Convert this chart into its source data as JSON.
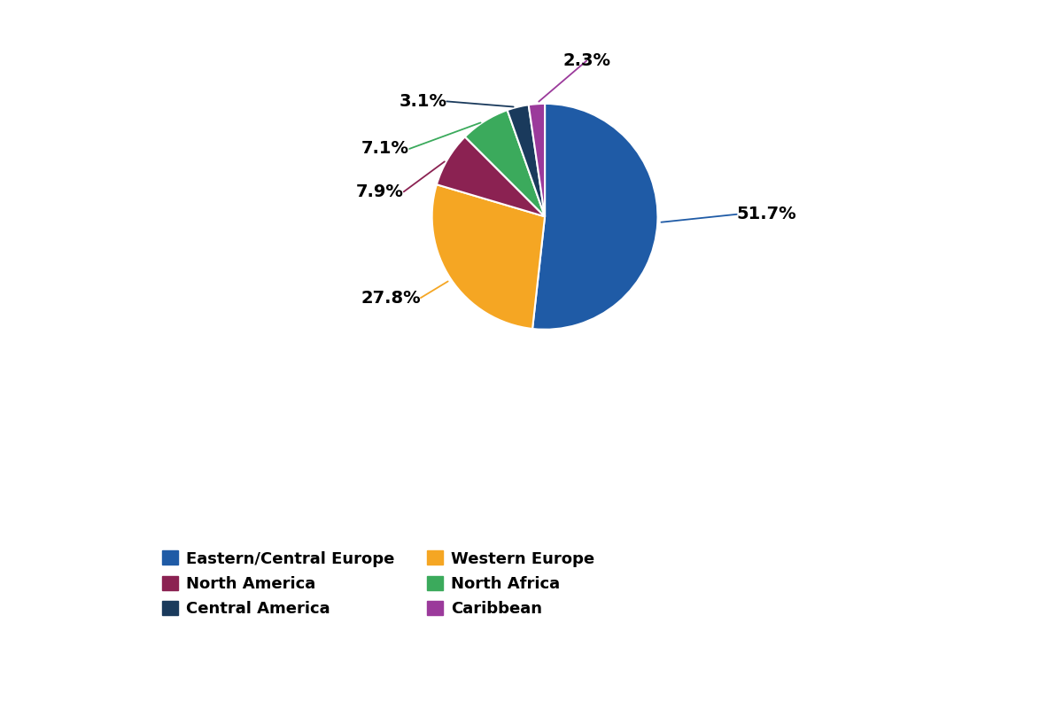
{
  "labels": [
    "Eastern/Central Europe",
    "Western Europe",
    "North America",
    "North Africa",
    "Central America",
    "Caribbean"
  ],
  "values": [
    51.7,
    27.8,
    7.9,
    7.1,
    3.1,
    2.3
  ],
  "colors": [
    "#1F5BA6",
    "#F5A623",
    "#8B2252",
    "#3BAA5C",
    "#1A3A5C",
    "#9B3A9B"
  ],
  "pct_labels": [
    "51.7%",
    "27.8%",
    "7.9%",
    "7.1%",
    "3.1%",
    "2.3%"
  ],
  "line_colors": [
    "#1F5BA6",
    "#F5A623",
    "#8B2252",
    "#3BAA5C",
    "#1A3A5C",
    "#9B3A9B"
  ],
  "background_color": "#FFFFFF",
  "label_fontsize": 14,
  "legend_fontsize": 13,
  "legend_order_col1": [
    0,
    2,
    4
  ],
  "legend_order_col2": [
    1,
    3,
    5
  ]
}
